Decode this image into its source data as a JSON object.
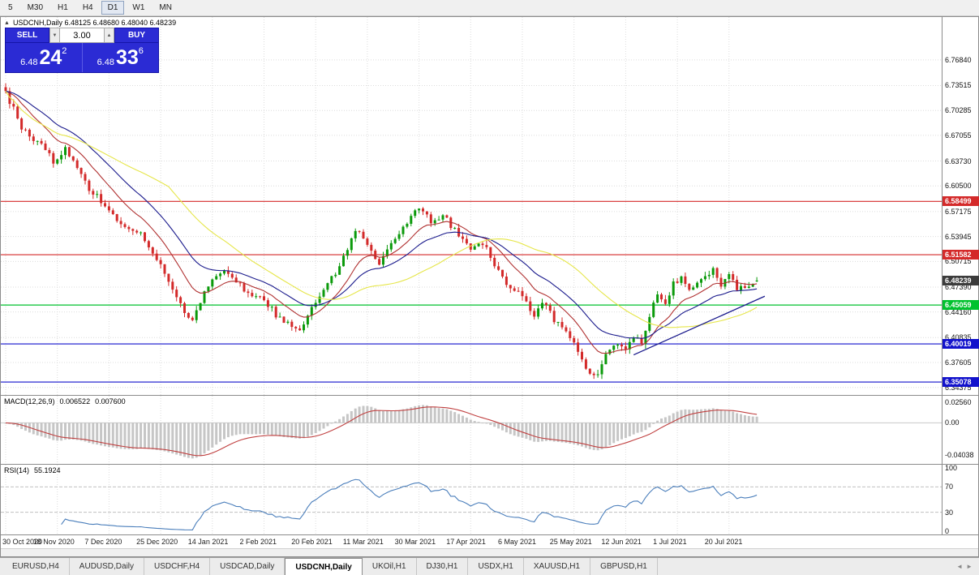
{
  "colors": {
    "up": "#0b9a0b",
    "down": "#d32a2a",
    "grid": "#dcdcdc",
    "ma_fast": "#b03030",
    "ma_mid": "#1a1a8c",
    "ma_slow": "#e6e649",
    "macd_hist": "#c6c6c6",
    "macd_signal": "#c04040",
    "rsi_line": "#4a7ebb",
    "panel_blue": "#2b2bd4",
    "tag_current": "#3c3c3c"
  },
  "icons": {
    "collapse": "▲",
    "spin_up": "▲",
    "spin_down": "▼",
    "tab_scroll_left": "◄",
    "tab_scroll_right": "►"
  },
  "toolbar": {
    "periods": [
      "5",
      "M30",
      "H1",
      "H4",
      "D1",
      "W1",
      "MN"
    ],
    "active": "D1"
  },
  "chart": {
    "title_text": "USDCNH,Daily 6.48125 6.48680 6.48040 6.48239"
  },
  "trade_panel": {
    "sell_label": "SELL",
    "buy_label": "BUY",
    "volume": "3.00",
    "sell_price": {
      "base": "6.48",
      "big": "24",
      "sup": "2"
    },
    "buy_price": {
      "base": "6.48",
      "big": "33",
      "sup": "6"
    }
  },
  "tabs": {
    "items": [
      "EURUSD,H4",
      "AUDUSD,Daily",
      "USDCHF,H4",
      "USDCAD,Daily",
      "USDCNH,Daily",
      "UKOil,H1",
      "DJ30,H1",
      "USDX,H1",
      "XAUUSD,H1",
      "GBPUSD,H1"
    ],
    "active": "USDCNH,Daily"
  },
  "chart_data": {
    "type": "candlestick",
    "title": "USDCNH,Daily",
    "bars": 190,
    "bar_spacing_px": 4.9,
    "last_bar": {
      "open": 6.48125,
      "high": 6.4868,
      "low": 6.4804,
      "close": 6.48239
    },
    "price_range": [
      6.334,
      6.824
    ],
    "price_axis_ticks": [
      6.7684,
      6.73515,
      6.70285,
      6.67055,
      6.6373,
      6.605,
      6.57175,
      6.53945,
      6.50715,
      6.4739,
      6.4416,
      6.40835,
      6.37605,
      6.34375
    ],
    "date_ticks": [
      "30 Oct 2020",
      "18 Nov 2020",
      "7 Dec 2020",
      "25 Dec 2020",
      "14 Jan 2021",
      "2 Feb 2021",
      "20 Feb 2021",
      "11 Mar 2021",
      "30 Mar 2021",
      "17 Apr 2021",
      "6 May 2021",
      "25 May 2021",
      "12 Jun 2021",
      "1 Jul 2021",
      "20 Jul 2021"
    ],
    "bars_per_date_tick": 13,
    "close_waypoints": [
      [
        0,
        6.725
      ],
      [
        2,
        6.705
      ],
      [
        4,
        6.682
      ],
      [
        6,
        6.668
      ],
      [
        9,
        6.662
      ],
      [
        12,
        6.636
      ],
      [
        15,
        6.652
      ],
      [
        18,
        6.628
      ],
      [
        21,
        6.602
      ],
      [
        24,
        6.586
      ],
      [
        26,
        6.574
      ],
      [
        29,
        6.556
      ],
      [
        32,
        6.548
      ],
      [
        34,
        6.545
      ],
      [
        36,
        6.522
      ],
      [
        39,
        6.502
      ],
      [
        42,
        6.472
      ],
      [
        45,
        6.442
      ],
      [
        47,
        6.432
      ],
      [
        50,
        6.468
      ],
      [
        52,
        6.482
      ],
      [
        55,
        6.498
      ],
      [
        58,
        6.482
      ],
      [
        61,
        6.466
      ],
      [
        65,
        6.458
      ],
      [
        68,
        6.438
      ],
      [
        71,
        6.428
      ],
      [
        74,
        6.417
      ],
      [
        77,
        6.448
      ],
      [
        80,
        6.47
      ],
      [
        83,
        6.492
      ],
      [
        86,
        6.52
      ],
      [
        88,
        6.548
      ],
      [
        91,
        6.53
      ],
      [
        94,
        6.506
      ],
      [
        97,
        6.528
      ],
      [
        100,
        6.552
      ],
      [
        103,
        6.57
      ],
      [
        105,
        6.576
      ],
      [
        107,
        6.556
      ],
      [
        110,
        6.568
      ],
      [
        113,
        6.547
      ],
      [
        117,
        6.521
      ],
      [
        120,
        6.532
      ],
      [
        123,
        6.502
      ],
      [
        126,
        6.478
      ],
      [
        129,
        6.468
      ],
      [
        131,
        6.452
      ],
      [
        133,
        6.434
      ],
      [
        135,
        6.456
      ],
      [
        138,
        6.432
      ],
      [
        141,
        6.414
      ],
      [
        143,
        6.4
      ],
      [
        145,
        6.38
      ],
      [
        147,
        6.36
      ],
      [
        149,
        6.362
      ],
      [
        151,
        6.386
      ],
      [
        154,
        6.402
      ],
      [
        156,
        6.396
      ],
      [
        158,
        6.408
      ],
      [
        160,
        6.402
      ],
      [
        162,
        6.436
      ],
      [
        164,
        6.466
      ],
      [
        166,
        6.455
      ],
      [
        168,
        6.478
      ],
      [
        170,
        6.488
      ],
      [
        172,
        6.47
      ],
      [
        175,
        6.481
      ],
      [
        178,
        6.497
      ],
      [
        180,
        6.476
      ],
      [
        182,
        6.49
      ],
      [
        184,
        6.47
      ],
      [
        186,
        6.474
      ],
      [
        188,
        6.479
      ],
      [
        189,
        6.48239
      ]
    ],
    "levels": [
      {
        "price": 6.58499,
        "label": "6.58499",
        "color": "#d42a2a"
      },
      {
        "price": 6.51582,
        "label": "6.51582",
        "color": "#d42a2a"
      },
      {
        "price": 6.45059,
        "label": "6.45059",
        "color": "#00c22e"
      },
      {
        "price": 6.40019,
        "label": "6.40019",
        "color": "#1212cc"
      },
      {
        "price": 6.35078,
        "label": "6.35078",
        "color": "#1212cc"
      }
    ],
    "current_price": {
      "value": 6.48239,
      "label": "6.48239"
    },
    "trendline": {
      "from_bar": 158,
      "from_price": 6.386,
      "to_bar": 191,
      "to_price": 6.462,
      "color": "#1a1a8c"
    },
    "moving_averages": [
      {
        "type": "ema",
        "period": 12,
        "color_key": "ma_fast"
      },
      {
        "type": "ema",
        "period": 24,
        "color_key": "ma_mid"
      },
      {
        "type": "sma",
        "period": 42,
        "color_key": "ma_slow"
      }
    ],
    "macd": {
      "label": "MACD(12,26,9)",
      "fast": 12,
      "slow": 26,
      "signal": 9,
      "value_main": "0.006522",
      "value_signal": "0.007600",
      "range": [
        -0.0512,
        0.0338
      ],
      "axis_ticks": [
        {
          "label": "0.02560",
          "value": 0.0256
        },
        {
          "label": "0.00",
          "value": 0
        },
        {
          "label": "-0.04038",
          "value": -0.04038
        }
      ]
    },
    "rsi": {
      "label": "RSI(14)",
      "period": 14,
      "value": "55.1924",
      "levels": [
        70,
        30
      ],
      "axis_ticks": [
        {
          "label": "100",
          "value": 100
        },
        {
          "label": "70",
          "value": 70
        },
        {
          "label": "30",
          "value": 30
        },
        {
          "label": "0",
          "value": 0
        }
      ]
    }
  }
}
